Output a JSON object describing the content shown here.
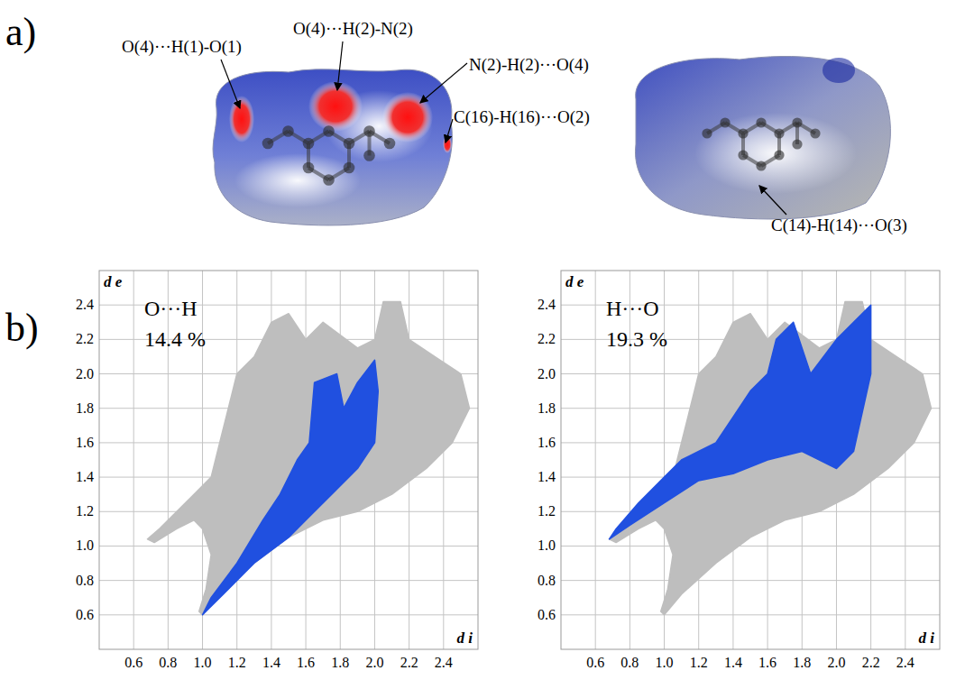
{
  "panel_a": {
    "label": "a)",
    "surfaces": [
      {
        "annotations": [
          "O(4)···H(1)-O(1)",
          "O(4)···H(2)-N(2)",
          "N(2)-H(2)···O(4)",
          "C(16)-H(16)···O(2)"
        ]
      },
      {
        "annotations": [
          "C(14)-H(14)···O(3)"
        ]
      }
    ]
  },
  "panel_b": {
    "label": "b)"
  },
  "chart_data": [
    {
      "type": "area",
      "title": "O···H",
      "subtitle": "14.4 %",
      "x_label": "d i",
      "y_label": "d e",
      "xlim": [
        0.4,
        2.6
      ],
      "ylim": [
        0.4,
        2.6
      ],
      "xticks": [
        0.6,
        0.8,
        {
          "value": 1,
          "label": "1.0"
        },
        1.2,
        1.4,
        1.6,
        1.8,
        {
          "value": 2,
          "label": "2.0"
        },
        2.2,
        2.4
      ],
      "yticks": [
        0.6,
        0.8,
        {
          "value": 1,
          "label": "1.0"
        },
        1.2,
        1.4,
        1.6,
        1.8,
        {
          "value": 2,
          "label": "2.0"
        },
        2.2,
        2.4
      ],
      "grid": true,
      "series": [
        {
          "color": "#bebebe",
          "x": [
            1.0,
            1.1,
            1.3,
            1.5,
            1.7,
            1.9,
            2.1,
            2.3,
            2.45,
            2.55,
            2.5,
            2.35,
            2.2,
            2.15,
            2.05,
            2.0,
            1.9,
            1.7,
            1.6,
            1.5,
            1.4,
            1.3,
            1.2,
            1.15,
            1.1,
            1.05,
            0.95,
            0.85,
            0.75,
            0.68,
            0.72,
            0.85,
            0.95,
            1.0,
            1.05,
            1.02,
            0.98
          ],
          "values": [
            0.6,
            0.72,
            0.9,
            1.05,
            1.15,
            1.2,
            1.3,
            1.45,
            1.6,
            1.8,
            2.0,
            2.1,
            2.2,
            2.42,
            2.42,
            2.2,
            2.15,
            2.3,
            2.2,
            2.35,
            2.3,
            2.1,
            2.0,
            1.8,
            1.6,
            1.4,
            1.3,
            1.2,
            1.1,
            1.04,
            1.02,
            1.1,
            1.15,
            1.1,
            0.95,
            0.75,
            0.62
          ]
        },
        {
          "color": "#2050e0",
          "x": [
            1.0,
            1.12,
            1.3,
            1.5,
            1.6,
            1.75,
            1.9,
            2.0,
            2.02,
            2.0,
            1.9,
            1.82,
            1.78,
            1.65,
            1.62,
            1.55,
            1.45,
            1.35,
            1.2,
            1.05
          ],
          "values": [
            0.6,
            0.72,
            0.9,
            1.05,
            1.15,
            1.3,
            1.45,
            1.6,
            1.9,
            2.08,
            1.95,
            1.8,
            2.0,
            1.95,
            1.6,
            1.5,
            1.3,
            1.15,
            0.9,
            0.7
          ]
        }
      ]
    },
    {
      "type": "area",
      "title": "H···O",
      "subtitle": "19.3 %",
      "x_label": "d i",
      "y_label": "d e",
      "xlim": [
        0.4,
        2.6
      ],
      "ylim": [
        0.4,
        2.6
      ],
      "xticks": [
        0.6,
        0.8,
        {
          "value": 1,
          "label": "1.0"
        },
        1.2,
        1.4,
        1.6,
        1.8,
        {
          "value": 2,
          "label": "2.0"
        },
        2.2,
        2.4
      ],
      "yticks": [
        0.6,
        0.8,
        {
          "value": 1,
          "label": "1.0"
        },
        1.2,
        1.4,
        1.6,
        1.8,
        {
          "value": 2,
          "label": "2.0"
        },
        2.2,
        2.4
      ],
      "grid": true,
      "series": [
        {
          "color": "#bebebe",
          "x": [
            1.0,
            1.1,
            1.3,
            1.5,
            1.7,
            1.9,
            2.1,
            2.3,
            2.45,
            2.55,
            2.5,
            2.35,
            2.2,
            2.15,
            2.05,
            2.0,
            1.9,
            1.7,
            1.6,
            1.5,
            1.4,
            1.3,
            1.2,
            1.15,
            1.1,
            1.05,
            0.95,
            0.85,
            0.75,
            0.68,
            0.72,
            0.85,
            0.95,
            1.0,
            1.05,
            1.02,
            0.98
          ],
          "values": [
            0.6,
            0.72,
            0.9,
            1.05,
            1.15,
            1.2,
            1.3,
            1.45,
            1.6,
            1.8,
            2.0,
            2.1,
            2.2,
            2.42,
            2.42,
            2.2,
            2.15,
            2.3,
            2.2,
            2.35,
            2.3,
            2.1,
            2.0,
            1.8,
            1.6,
            1.4,
            1.3,
            1.2,
            1.1,
            1.04,
            1.02,
            1.1,
            1.15,
            1.1,
            0.95,
            0.75,
            0.62
          ]
        },
        {
          "color": "#2050e0",
          "x": [
            0.68,
            0.8,
            1.0,
            1.2,
            1.4,
            1.6,
            1.8,
            2.0,
            2.1,
            2.2,
            2.2,
            2.1,
            2.0,
            1.85,
            1.75,
            1.65,
            1.6,
            1.5,
            1.4,
            1.3,
            1.2,
            1.1,
            1.0,
            0.85,
            0.72
          ],
          "values": [
            1.04,
            1.12,
            1.25,
            1.38,
            1.42,
            1.5,
            1.55,
            1.45,
            1.55,
            2.0,
            2.4,
            2.3,
            2.2,
            2.0,
            2.3,
            2.2,
            2.0,
            1.9,
            1.75,
            1.6,
            1.55,
            1.5,
            1.4,
            1.25,
            1.1
          ]
        }
      ]
    }
  ]
}
